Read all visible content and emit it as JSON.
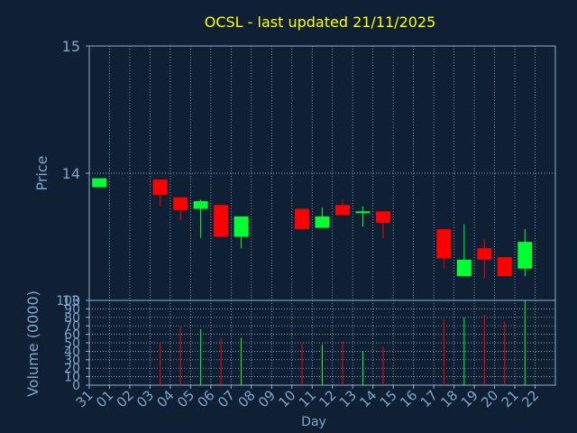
{
  "chart_data": [
    {
      "type": "candlestick",
      "title": "OCSL - last updated 21/11/2025",
      "ylabel": "Price",
      "ylim": [
        13,
        15
      ],
      "yticks": [
        13,
        14,
        15
      ],
      "grid": true,
      "x": [
        "31",
        "01",
        "02",
        "03",
        "04",
        "05",
        "06",
        "07",
        "08",
        "09",
        "10",
        "11",
        "12",
        "13",
        "14",
        "15",
        "16",
        "17",
        "18",
        "19",
        "20",
        "21",
        "22"
      ],
      "candles": [
        {
          "day": "31",
          "open": 13.89,
          "close": 13.96,
          "high": 13.96,
          "low": 13.89
        },
        {
          "day": "03",
          "open": 13.95,
          "close": 13.83,
          "high": 13.95,
          "low": 13.74
        },
        {
          "day": "04",
          "open": 13.81,
          "close": 13.71,
          "high": 13.81,
          "low": 13.63
        },
        {
          "day": "05",
          "open": 13.72,
          "close": 13.78,
          "high": 13.79,
          "low": 13.49
        },
        {
          "day": "06",
          "open": 13.75,
          "close": 13.5,
          "high": 13.75,
          "low": 13.5
        },
        {
          "day": "07",
          "open": 13.5,
          "close": 13.66,
          "high": 13.66,
          "low": 13.41
        },
        {
          "day": "10",
          "open": 13.72,
          "close": 13.56,
          "high": 13.72,
          "low": 13.56
        },
        {
          "day": "11",
          "open": 13.57,
          "close": 13.66,
          "high": 13.73,
          "low": 13.57
        },
        {
          "day": "12",
          "open": 13.75,
          "close": 13.67,
          "high": 13.79,
          "low": 13.67
        },
        {
          "day": "13",
          "open": 13.69,
          "close": 13.7,
          "high": 13.74,
          "low": 13.58
        },
        {
          "day": "14",
          "open": 13.7,
          "close": 13.61,
          "high": 13.7,
          "low": 13.49
        },
        {
          "day": "17",
          "open": 13.56,
          "close": 13.33,
          "high": 13.56,
          "low": 13.25
        },
        {
          "day": "18",
          "open": 13.19,
          "close": 13.32,
          "high": 13.6,
          "low": 13.19
        },
        {
          "day": "19",
          "open": 13.41,
          "close": 13.32,
          "high": 13.48,
          "low": 13.17
        },
        {
          "day": "20",
          "open": 13.34,
          "close": 13.19,
          "high": 13.34,
          "low": 13.19
        },
        {
          "day": "21",
          "open": 13.25,
          "close": 13.46,
          "high": 13.56,
          "low": 13.19
        }
      ],
      "colors": {
        "up": "#00ff33",
        "down": "#ff0000"
      }
    },
    {
      "type": "bar",
      "ylabel": "Volume (0000)",
      "xlabel": "Day",
      "ylim": [
        0,
        100
      ],
      "yticks": [
        "0",
        "10",
        "20",
        "30",
        "40",
        "50",
        "60",
        "70",
        "80",
        "90",
        "100"
      ],
      "grid": true,
      "x": [
        "31",
        "01",
        "02",
        "03",
        "04",
        "05",
        "06",
        "07",
        "08",
        "09",
        "10",
        "11",
        "12",
        "13",
        "14",
        "15",
        "16",
        "17",
        "18",
        "19",
        "20",
        "21",
        "22"
      ],
      "bars": [
        {
          "day": "03",
          "value": 51,
          "color": "#ff0000"
        },
        {
          "day": "04",
          "value": 69,
          "color": "#ff0000"
        },
        {
          "day": "05",
          "value": 66,
          "color": "#00ff33"
        },
        {
          "day": "06",
          "value": 56,
          "color": "#ff0000"
        },
        {
          "day": "07",
          "value": 56,
          "color": "#00ff33"
        },
        {
          "day": "10",
          "value": 49,
          "color": "#ff0000"
        },
        {
          "day": "11",
          "value": 48,
          "color": "#00ff33"
        },
        {
          "day": "12",
          "value": 52,
          "color": "#ff0000"
        },
        {
          "day": "13",
          "value": 40,
          "color": "#00ff33"
        },
        {
          "day": "14",
          "value": 45,
          "color": "#ff0000"
        },
        {
          "day": "17",
          "value": 77,
          "color": "#ff0000"
        },
        {
          "day": "18",
          "value": 80,
          "color": "#00ff33"
        },
        {
          "day": "19",
          "value": 83,
          "color": "#ff0000"
        },
        {
          "day": "20",
          "value": 75,
          "color": "#ff0000"
        },
        {
          "day": "21",
          "value": 100,
          "color": "#00ff33"
        }
      ]
    }
  ],
  "colors": {
    "background": "#0f2035",
    "frame": "#8fb0cc",
    "grid": "#b0c4d8",
    "tick_text": "#7ea6c8",
    "title": "#ffff00"
  }
}
